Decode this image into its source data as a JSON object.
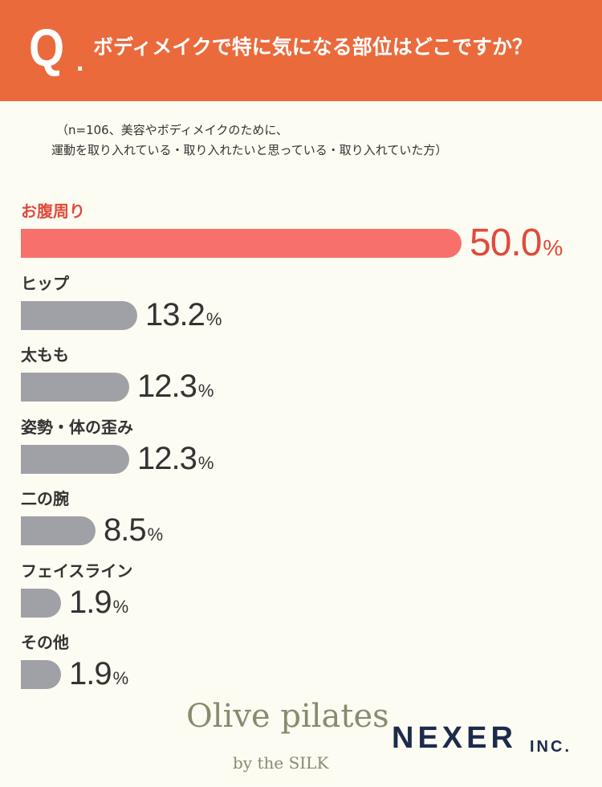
{
  "header": {
    "q_mark": "Q",
    "q_dot": ".",
    "question": "ボディメイクで特に気になる部位はどこですか？"
  },
  "note": {
    "line1": "（n=106、美容やボディメイクのために、",
    "line2": "運動を取り入れている・取り入れたいと思っている・取り入れていた方）"
  },
  "colors": {
    "header_bg": "#ea6a3c",
    "highlight_bar": "#f8706b",
    "highlight_text": "#e04a3c",
    "bar": "#a0a1a6",
    "background": "#fdfcf2"
  },
  "chart_data": {
    "type": "bar",
    "orientation": "horizontal",
    "categories": [
      "お腹周り",
      "ヒップ",
      "太もも",
      "姿勢・体の歪み",
      "二の腕",
      "フェイスライン",
      "その他"
    ],
    "values": [
      50.0,
      13.2,
      12.3,
      12.3,
      8.5,
      1.9,
      1.9
    ],
    "value_labels": [
      "50.0",
      "13.2",
      "12.3",
      "12.3",
      "8.5",
      "1.9",
      "1.9"
    ],
    "unit": "%",
    "highlight_index": 0
  },
  "logos": {
    "olive": "Olive pilates",
    "olive_sub": "by the SILK",
    "nexer": "NEXER",
    "nexer_inc": "INC."
  }
}
